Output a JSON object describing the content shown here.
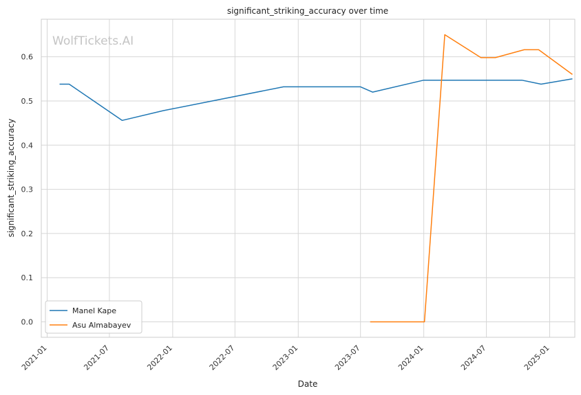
{
  "chart_data": {
    "type": "line",
    "title": "significant_striking_accuracy over time",
    "xlabel": "Date",
    "ylabel": "significant_striking_accuracy",
    "watermark": "WolfTickets.AI",
    "x_axis_type": "date",
    "xlim": [
      "2020-12-15",
      "2025-03-15"
    ],
    "ylim": [
      -0.035,
      0.685
    ],
    "x_ticks": [
      "2021-01",
      "2021-07",
      "2022-01",
      "2022-07",
      "2023-01",
      "2023-07",
      "2024-01",
      "2024-07",
      "2025-01"
    ],
    "y_ticks": [
      "0.0",
      "0.1",
      "0.2",
      "0.3",
      "0.4",
      "0.5",
      "0.6"
    ],
    "grid": true,
    "legend_position": "bottom-left",
    "series": [
      {
        "name": "Manel Kape",
        "color": "#1f77b4",
        "points": [
          {
            "x": "2021-02-06",
            "y": 0.538
          },
          {
            "x": "2021-03-06",
            "y": 0.538
          },
          {
            "x": "2021-08-07",
            "y": 0.456
          },
          {
            "x": "2021-12-04",
            "y": 0.478
          },
          {
            "x": "2022-11-19",
            "y": 0.532
          },
          {
            "x": "2023-07-01",
            "y": 0.532
          },
          {
            "x": "2023-08-05",
            "y": 0.52
          },
          {
            "x": "2024-01-01",
            "y": 0.547
          },
          {
            "x": "2024-10-12",
            "y": 0.547
          },
          {
            "x": "2024-12-07",
            "y": 0.538
          },
          {
            "x": "2025-03-08",
            "y": 0.55
          }
        ]
      },
      {
        "name": "Asu Almabayev",
        "color": "#ff7f0e",
        "points": [
          {
            "x": "2023-07-29",
            "y": 0.0
          },
          {
            "x": "2024-01-03",
            "y": 0.0
          },
          {
            "x": "2024-03-02",
            "y": 0.65
          },
          {
            "x": "2024-06-15",
            "y": 0.598
          },
          {
            "x": "2024-07-27",
            "y": 0.598
          },
          {
            "x": "2024-10-19",
            "y": 0.616
          },
          {
            "x": "2024-11-30",
            "y": 0.616
          },
          {
            "x": "2025-03-08",
            "y": 0.56
          }
        ]
      }
    ]
  }
}
